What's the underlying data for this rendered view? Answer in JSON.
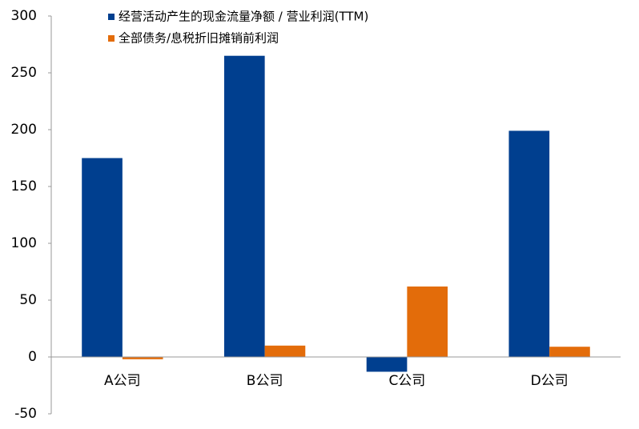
{
  "chart_data": {
    "type": "bar",
    "categories": [
      "A公司",
      "B公司",
      "C公司",
      "D公司"
    ],
    "series": [
      {
        "name": "经营活动产生的现金流量净额 / 营业利润(TTM)",
        "color": "#003f8f",
        "values": [
          175,
          265,
          -13,
          199
        ]
      },
      {
        "name": "全部债务/息税折旧摊销前利润",
        "color": "#e36c0a",
        "values": [
          -2,
          10,
          62,
          9
        ]
      }
    ],
    "ylim": [
      -50,
      300
    ],
    "yticks": [
      -50,
      0,
      50,
      100,
      150,
      200,
      250,
      300
    ],
    "grid": false
  }
}
